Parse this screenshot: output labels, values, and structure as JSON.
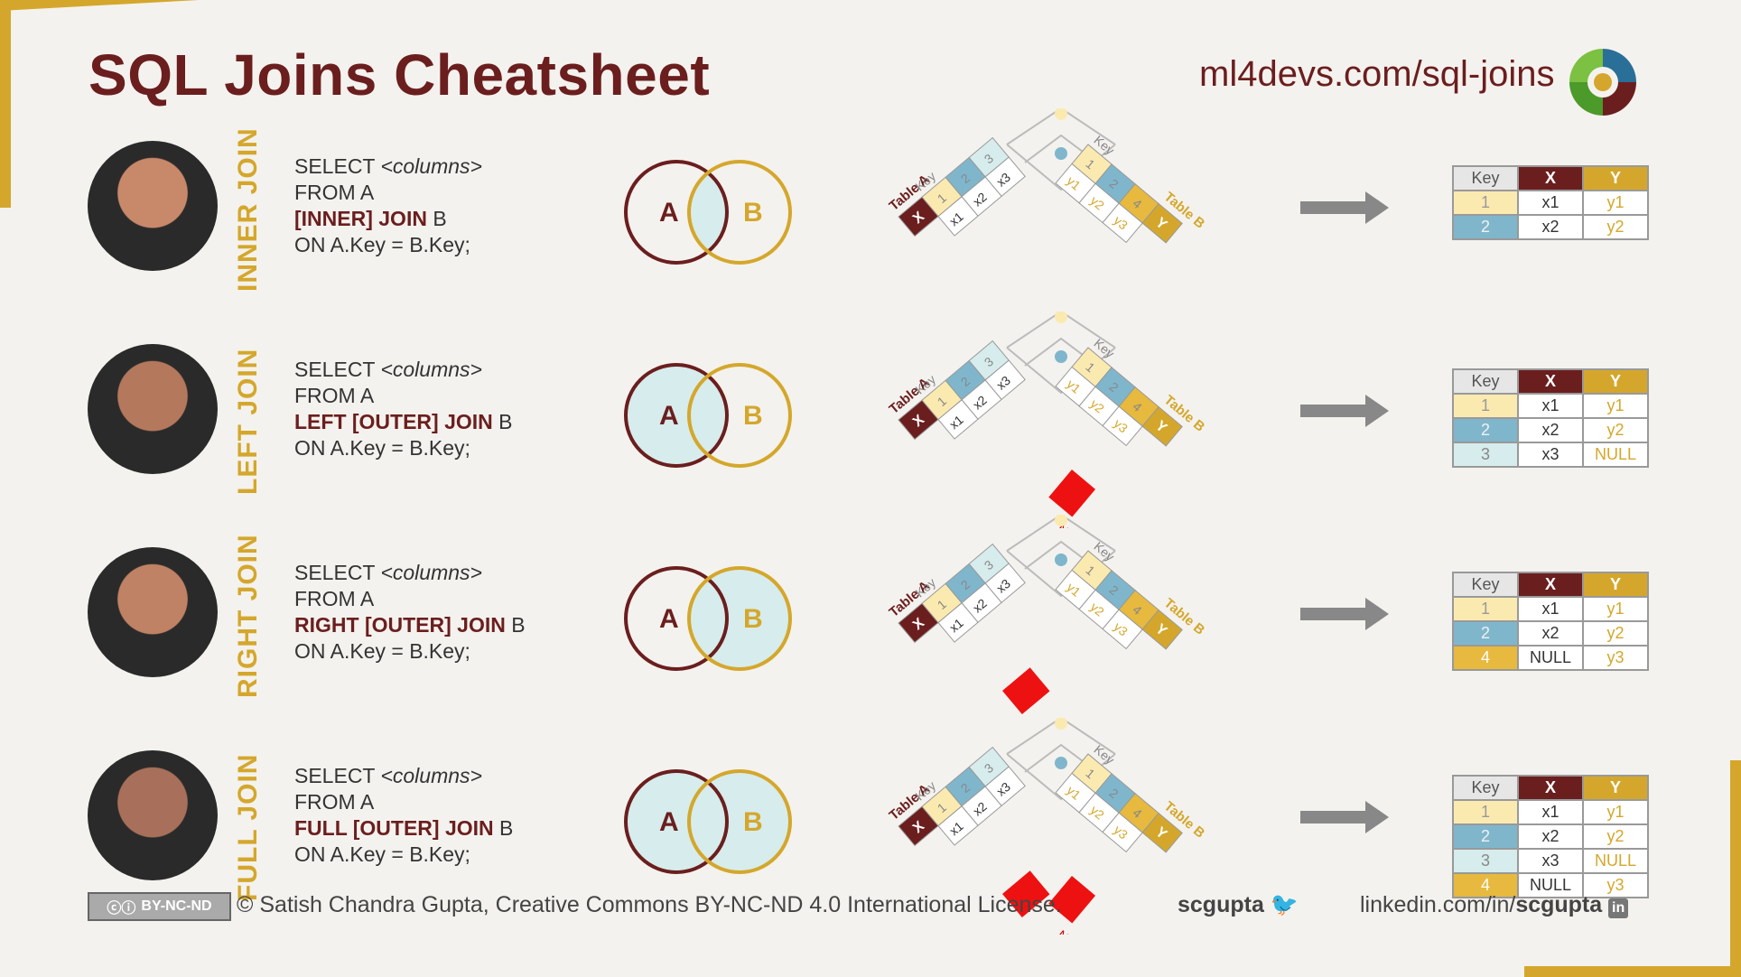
{
  "header": {
    "title": "SQL Joins Cheatsheet",
    "site": "ml4devs.com/sql-joins"
  },
  "venn_labels": {
    "a": "A",
    "b": "B"
  },
  "diagram_labels": {
    "table_a": "Table A",
    "table_b": "Table B",
    "key": "Key",
    "x": "X",
    "y": "Y",
    "null": "NULL"
  },
  "table_a": {
    "keys": [
      "1",
      "2",
      "3"
    ],
    "x": [
      "x1",
      "x2",
      "x3"
    ]
  },
  "table_b": {
    "keys": [
      "1",
      "2",
      "4"
    ],
    "y": [
      "y1",
      "y2",
      "y3"
    ]
  },
  "joins": [
    {
      "label": "INNER JOIN",
      "sql": {
        "line1_prefix": "SELECT ",
        "line1_italic": "<columns>",
        "line2": "FROM A",
        "line3_kw": "[INNER] JOIN",
        "line3_rest": " B",
        "line4": "ON A.Key = B.Key;"
      },
      "result": {
        "headers": [
          "Key",
          "X",
          "Y"
        ],
        "rows": [
          [
            "1",
            "x1",
            "y1"
          ],
          [
            "2",
            "x2",
            "y2"
          ]
        ]
      }
    },
    {
      "label": "LEFT JOIN",
      "sql": {
        "line1_prefix": "SELECT ",
        "line1_italic": "<columns>",
        "line2": "FROM A",
        "line3_kw": "LEFT [OUTER] JOIN",
        "line3_rest": " B",
        "line4": "ON A.Key = B.Key;"
      },
      "result": {
        "headers": [
          "Key",
          "X",
          "Y"
        ],
        "rows": [
          [
            "1",
            "x1",
            "y1"
          ],
          [
            "2",
            "x2",
            "y2"
          ],
          [
            "3",
            "x3",
            "NULL"
          ]
        ]
      }
    },
    {
      "label": "RIGHT JOIN",
      "sql": {
        "line1_prefix": "SELECT ",
        "line1_italic": "<columns>",
        "line2": "FROM A",
        "line3_kw": "RIGHT [OUTER] JOIN",
        "line3_rest": " B",
        "line4": "ON A.Key = B.Key;"
      },
      "result": {
        "headers": [
          "Key",
          "X",
          "Y"
        ],
        "rows": [
          [
            "1",
            "x1",
            "y1"
          ],
          [
            "2",
            "x2",
            "y2"
          ],
          [
            "4",
            "NULL",
            "y3"
          ]
        ]
      }
    },
    {
      "label": "FULL JOIN",
      "sql": {
        "line1_prefix": "SELECT ",
        "line1_italic": "<columns>",
        "line2": "FROM A",
        "line3_kw": "FULL [OUTER] JOIN",
        "line3_rest": " B",
        "line4": "ON A.Key = B.Key;"
      },
      "result": {
        "headers": [
          "Key",
          "X",
          "Y"
        ],
        "rows": [
          [
            "1",
            "x1",
            "y1"
          ],
          [
            "2",
            "x2",
            "y2"
          ],
          [
            "3",
            "x3",
            "NULL"
          ],
          [
            "4",
            "NULL",
            "y3"
          ]
        ]
      }
    }
  ],
  "footer": {
    "cc_badge": "BY-NC-ND",
    "license": "© Satish Chandra Gupta, Creative Commons BY-NC-ND 4.0 International License.",
    "twitter": "scgupta",
    "linkedin_prefix": "linkedin.com/in/",
    "linkedin_handle": "scgupta"
  },
  "colors": {
    "maroon": "#6b1e1e",
    "gold": "#d4a72c",
    "teal_light": "#d7ecec",
    "blue": "#7fb6cc",
    "yellow_light": "#fbeab0",
    "null_red": "#ee1111"
  }
}
